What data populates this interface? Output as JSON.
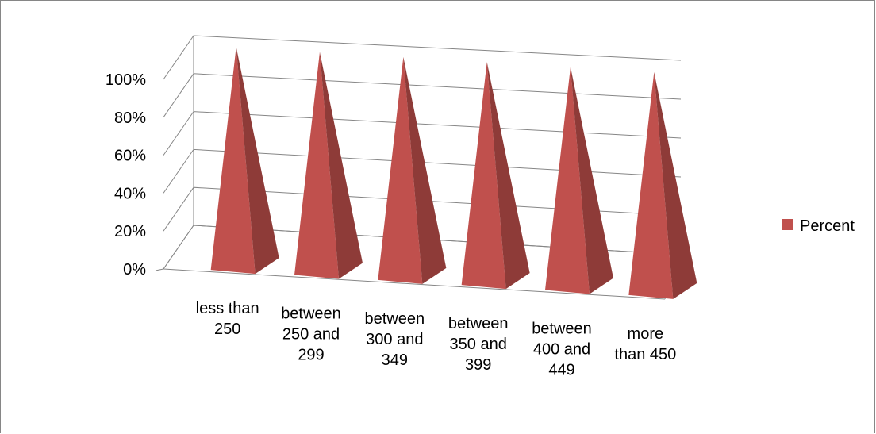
{
  "chart_data": {
    "type": "bar",
    "style": "3d-pyramid",
    "categories": [
      [
        "less than",
        "250"
      ],
      [
        "between",
        "250 and",
        "299"
      ],
      [
        "between",
        "300 and",
        "349"
      ],
      [
        "between",
        "350 and",
        "399"
      ],
      [
        "between",
        "400 and",
        "449"
      ],
      [
        "more",
        "than 450"
      ]
    ],
    "series": [
      {
        "name": "Percent",
        "values": [
          100,
          100,
          100,
          100,
          100,
          100
        ],
        "color": "#C0504D"
      }
    ],
    "y_ticks": [
      "0%",
      "20%",
      "40%",
      "60%",
      "80%",
      "100%"
    ],
    "ylim": [
      0,
      100
    ],
    "grid": true,
    "legend_position": "right"
  }
}
